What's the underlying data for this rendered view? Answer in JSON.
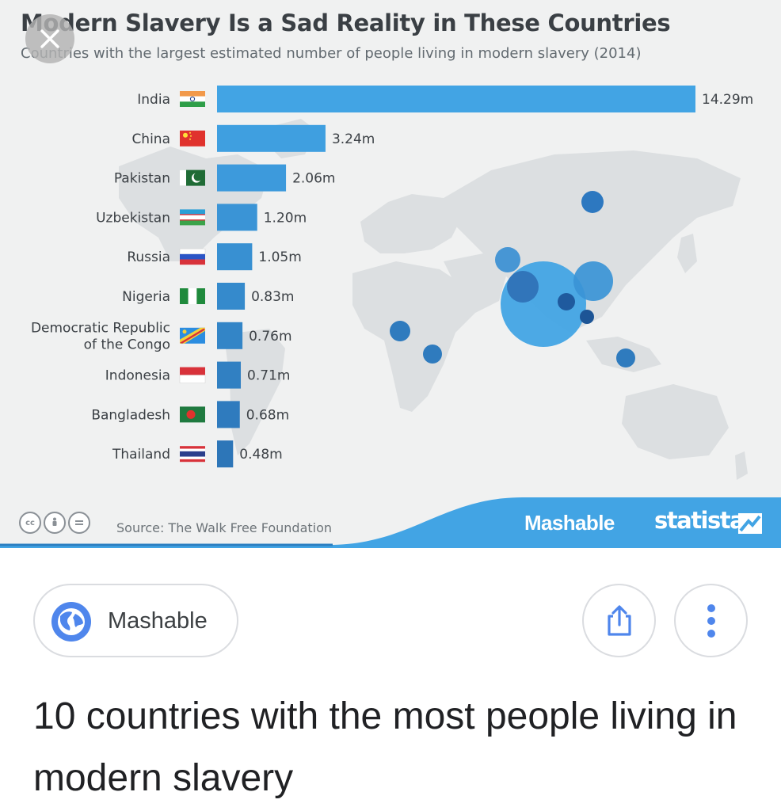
{
  "image": {
    "title": "Modern Slavery Is a Sad Reality in These Countries",
    "subtitle": "Countries with the largest estimated number of people living in modern slavery (2014)",
    "source": "Source: The Walk Free Foundation",
    "brands": {
      "mashable": "Mashable",
      "statista": "statista"
    },
    "license_icons": [
      "cc",
      "by",
      "nd"
    ]
  },
  "chart_data": {
    "type": "bar",
    "orientation": "horizontal",
    "title": "Modern Slavery Is a Sad Reality in These Countries",
    "subtitle": "Countries with the largest estimated number of people living in modern slavery (2014)",
    "categories": [
      "India",
      "China",
      "Pakistan",
      "Uzbekistan",
      "Russia",
      "Nigeria",
      "Democratic Republic of the Congo",
      "Indonesia",
      "Bangladesh",
      "Thailand"
    ],
    "category_lines": [
      [
        "India"
      ],
      [
        "China"
      ],
      [
        "Pakistan"
      ],
      [
        "Uzbekistan"
      ],
      [
        "Russia"
      ],
      [
        "Nigeria"
      ],
      [
        "Democratic Republic",
        "of the Congo"
      ],
      [
        "Indonesia"
      ],
      [
        "Bangladesh"
      ],
      [
        "Thailand"
      ]
    ],
    "values": [
      14.29,
      3.24,
      2.06,
      1.2,
      1.05,
      0.83,
      0.76,
      0.71,
      0.68,
      0.48
    ],
    "value_labels": [
      "14.29m",
      "3.24m",
      "2.06m",
      "1.20m",
      "1.05m",
      "0.83m",
      "0.76m",
      "0.71m",
      "0.68m",
      "0.48m"
    ],
    "unit": "m",
    "bar_colors": [
      "#42a4e4",
      "#3f9fe0",
      "#3d9adc",
      "#3a94d6",
      "#3890d2",
      "#358acc",
      "#3385c7",
      "#3180c2",
      "#2f7bbe",
      "#2d76b8"
    ],
    "flags": [
      "flag-india-icon",
      "flag-china-icon",
      "flag-pakistan-icon",
      "flag-uzbekistan-icon",
      "flag-russia-icon",
      "flag-nigeria-icon",
      "flag-dr-congo-icon",
      "flag-indonesia-icon",
      "flag-bangladesh-icon",
      "flag-thailand-icon"
    ],
    "grid": false,
    "legend": "none"
  },
  "card": {
    "source_name": "Mashable",
    "source_icon": "globe-icon",
    "share_icon": "share-icon",
    "more_icon": "more-vert-icon",
    "result_title": "10 countries with the most people living in modern slavery"
  },
  "colors": {
    "bar": "#42a4e4",
    "banner": "#42a4e4",
    "map_land": "#dcdfe1",
    "background": "#f0f1f1"
  }
}
